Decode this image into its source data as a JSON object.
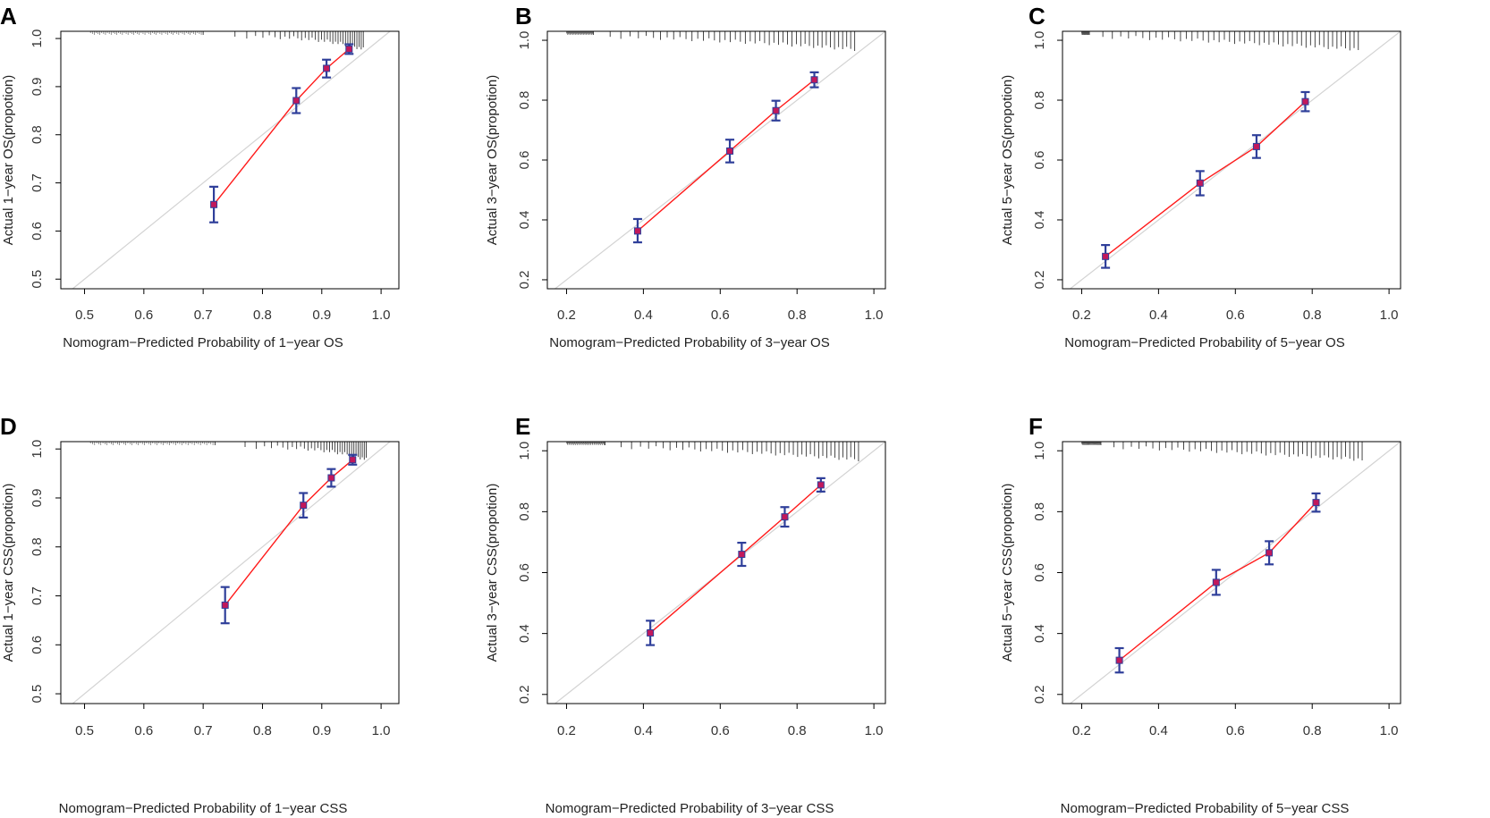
{
  "chart_data": [
    {
      "panel": "A",
      "type": "scatter",
      "xlabel": "Nomogram−Predicted Probability of 1−year OS",
      "ylabel": "Actual 1−year OS(propotion)",
      "xlim": [
        0.46,
        1.03
      ],
      "ylim": [
        0.48,
        1.015
      ],
      "xticks": [
        "0.5",
        "0.6",
        "0.7",
        "0.8",
        "0.9",
        "1.0"
      ],
      "yticks": [
        "0.5",
        "0.6",
        "0.7",
        "0.8",
        "0.9",
        "1.0"
      ],
      "points": [
        {
          "x": 0.718,
          "y": 0.655,
          "lo": 0.618,
          "hi": 0.692
        },
        {
          "x": 0.857,
          "y": 0.871,
          "lo": 0.845,
          "hi": 0.897
        },
        {
          "x": 0.908,
          "y": 0.938,
          "lo": 0.919,
          "hi": 0.956
        },
        {
          "x": 0.946,
          "y": 0.978,
          "lo": 0.968,
          "hi": 0.988
        }
      ],
      "rug": {
        "start": 0.7,
        "end": 0.97,
        "count": 36,
        "power": 2.2
      }
    },
    {
      "panel": "B",
      "type": "scatter",
      "xlabel": "Nomogram−Predicted Probability of 3−year OS",
      "ylabel": "Actual 3−year OS(propotion)",
      "xlim": [
        0.15,
        1.03
      ],
      "ylim": [
        0.17,
        1.03
      ],
      "xticks": [
        "0.2",
        "0.4",
        "0.6",
        "0.8",
        "1.0"
      ],
      "yticks": [
        "0.2",
        "0.4",
        "0.6",
        "0.8",
        "1.0"
      ],
      "points": [
        {
          "x": 0.385,
          "y": 0.363,
          "lo": 0.325,
          "hi": 0.403
        },
        {
          "x": 0.625,
          "y": 0.63,
          "lo": 0.592,
          "hi": 0.668
        },
        {
          "x": 0.745,
          "y": 0.765,
          "lo": 0.732,
          "hi": 0.798
        },
        {
          "x": 0.845,
          "y": 0.868,
          "lo": 0.843,
          "hi": 0.893
        }
      ],
      "rug": {
        "start": 0.27,
        "end": 0.95,
        "count": 48,
        "power": 1.4
      }
    },
    {
      "panel": "C",
      "type": "scatter",
      "xlabel": "Nomogram−Predicted Probability of 5−year OS",
      "ylabel": "Actual 5−year OS(propotion)",
      "xlim": [
        0.15,
        1.03
      ],
      "ylim": [
        0.17,
        1.03
      ],
      "xticks": [
        "0.2",
        "0.4",
        "0.6",
        "0.8",
        "1.0"
      ],
      "yticks": [
        "0.2",
        "0.4",
        "0.6",
        "0.8",
        "1.0"
      ],
      "points": [
        {
          "x": 0.262,
          "y": 0.278,
          "lo": 0.24,
          "hi": 0.316
        },
        {
          "x": 0.508,
          "y": 0.523,
          "lo": 0.482,
          "hi": 0.563
        },
        {
          "x": 0.655,
          "y": 0.645,
          "lo": 0.607,
          "hi": 0.683
        },
        {
          "x": 0.782,
          "y": 0.795,
          "lo": 0.763,
          "hi": 0.827
        }
      ],
      "rug": {
        "start": 0.22,
        "end": 0.92,
        "count": 50,
        "power": 1.3
      }
    },
    {
      "panel": "D",
      "type": "scatter",
      "xlabel": "Nomogram−Predicted Probability of 1−year CSS",
      "ylabel": "Actual 1−year CSS(propotion)",
      "xlim": [
        0.46,
        1.03
      ],
      "ylim": [
        0.48,
        1.015
      ],
      "xticks": [
        "0.5",
        "0.6",
        "0.7",
        "0.8",
        "0.9",
        "1.0"
      ],
      "yticks": [
        "0.5",
        "0.6",
        "0.7",
        "0.8",
        "0.9",
        "1.0"
      ],
      "points": [
        {
          "x": 0.737,
          "y": 0.681,
          "lo": 0.644,
          "hi": 0.718
        },
        {
          "x": 0.869,
          "y": 0.885,
          "lo": 0.86,
          "hi": 0.91
        },
        {
          "x": 0.916,
          "y": 0.941,
          "lo": 0.923,
          "hi": 0.959
        },
        {
          "x": 0.952,
          "y": 0.978,
          "lo": 0.968,
          "hi": 0.988
        }
      ],
      "rug": {
        "start": 0.72,
        "end": 0.975,
        "count": 36,
        "power": 2.2
      }
    },
    {
      "panel": "E",
      "type": "scatter",
      "xlabel": "Nomogram−Predicted Probability of 3−year CSS",
      "ylabel": "Actual 3−year CSS(propotion)",
      "xlim": [
        0.15,
        1.03
      ],
      "ylim": [
        0.17,
        1.03
      ],
      "xticks": [
        "0.2",
        "0.4",
        "0.6",
        "0.8",
        "1.0"
      ],
      "yticks": [
        "0.2",
        "0.4",
        "0.6",
        "0.8",
        "1.0"
      ],
      "points": [
        {
          "x": 0.418,
          "y": 0.402,
          "lo": 0.362,
          "hi": 0.442
        },
        {
          "x": 0.656,
          "y": 0.66,
          "lo": 0.622,
          "hi": 0.698
        },
        {
          "x": 0.768,
          "y": 0.783,
          "lo": 0.751,
          "hi": 0.815
        },
        {
          "x": 0.862,
          "y": 0.888,
          "lo": 0.866,
          "hi": 0.91
        }
      ],
      "rug": {
        "start": 0.3,
        "end": 0.96,
        "count": 48,
        "power": 1.4
      }
    },
    {
      "panel": "F",
      "type": "scatter",
      "xlabel": "Nomogram−Predicted Probability of 5−year CSS",
      "ylabel": "Actual 5−year CSS(propotion)",
      "xlim": [
        0.15,
        1.03
      ],
      "ylim": [
        0.17,
        1.03
      ],
      "xticks": [
        "0.2",
        "0.4",
        "0.6",
        "0.8",
        "1.0"
      ],
      "yticks": [
        "0.2",
        "0.4",
        "0.6",
        "0.8",
        "1.0"
      ],
      "points": [
        {
          "x": 0.298,
          "y": 0.312,
          "lo": 0.272,
          "hi": 0.352
        },
        {
          "x": 0.55,
          "y": 0.568,
          "lo": 0.527,
          "hi": 0.609
        },
        {
          "x": 0.688,
          "y": 0.665,
          "lo": 0.627,
          "hi": 0.703
        },
        {
          "x": 0.81,
          "y": 0.83,
          "lo": 0.8,
          "hi": 0.86
        }
      ],
      "rug": {
        "start": 0.25,
        "end": 0.93,
        "count": 50,
        "power": 1.3
      }
    }
  ],
  "colors": {
    "calibration_line": "#ff1a1a",
    "error_bar": "#2f3f9a",
    "point_marker": "#c2185b",
    "ideal_line": "#d3d3d3",
    "frame": "#000000"
  }
}
